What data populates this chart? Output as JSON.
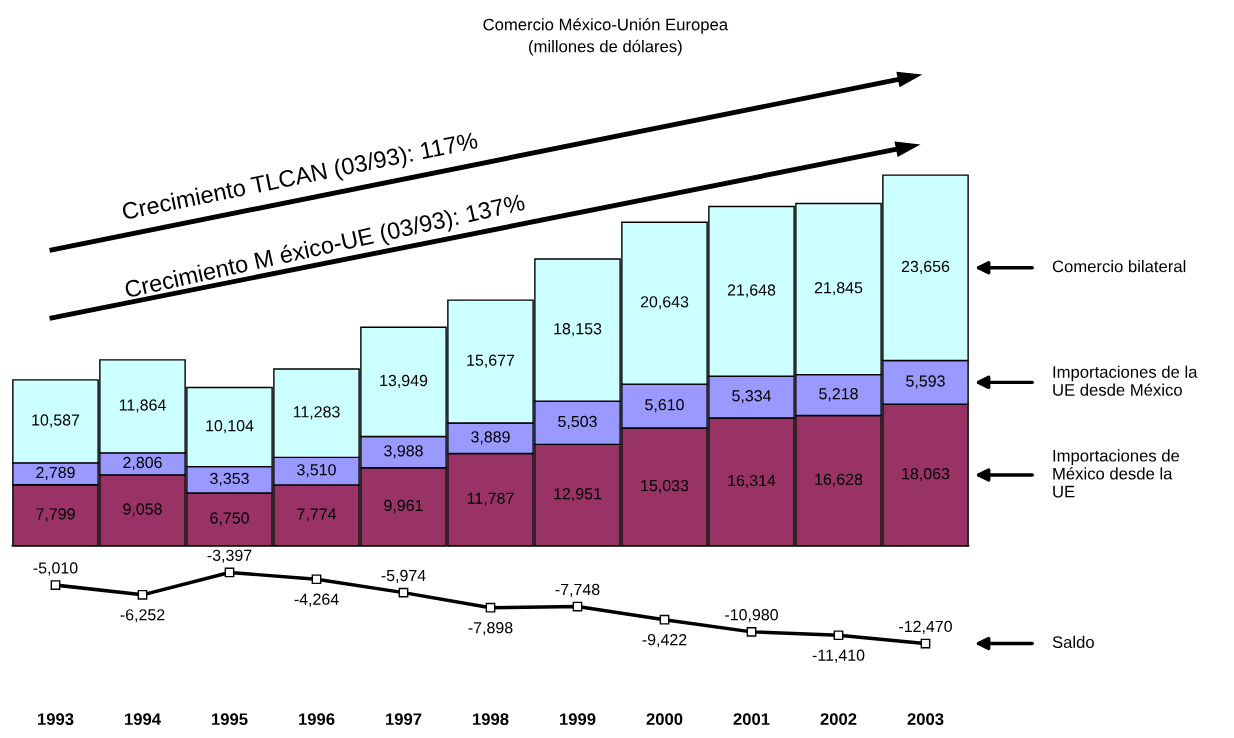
{
  "chart_data": {
    "type": "bar",
    "stacked": true,
    "title": "Comercio México-Unión Europea\n(millones de dólares)",
    "categories": [
      "1993",
      "1994",
      "1995",
      "1996",
      "1997",
      "1998",
      "1999",
      "2000",
      "2001",
      "2002",
      "2003"
    ],
    "series": [
      {
        "name": "Importaciones de\nMéxico desde la\nUE",
        "color": "#993366",
        "values": [
          7799,
          9058,
          6750,
          7774,
          9961,
          11787,
          12951,
          15033,
          16314,
          16628,
          18063
        ],
        "value_labels": [
          "7,799",
          "9,058",
          "6,750",
          "7,774",
          "9,961",
          "11,787",
          "12,951",
          "15,033",
          "16,314",
          "16,628",
          "18,063"
        ]
      },
      {
        "name": "Importaciones de la\nUE desde México",
        "color": "#9999ff",
        "values": [
          2789,
          2806,
          3353,
          3510,
          3988,
          3889,
          5503,
          5610,
          5334,
          5218,
          5593
        ],
        "value_labels": [
          "2,789",
          "2,806",
          "3,353",
          "3,510",
          "3,988",
          "3,889",
          "5,503",
          "5,610",
          "5,334",
          "5,218",
          "5,593"
        ]
      },
      {
        "name": "Comercio bilateral",
        "color": "#ccffff",
        "values": [
          10587,
          11864,
          10104,
          11283,
          13949,
          15677,
          18153,
          20643,
          21648,
          21845,
          23656
        ],
        "value_labels": [
          "10,587",
          "11,864",
          "10,104",
          "11,283",
          "13,949",
          "15,677",
          "18,153",
          "20,643",
          "21,648",
          "21,845",
          "23,656"
        ]
      },
      {
        "name": "Saldo",
        "type": "line",
        "color": "#000000",
        "marker": "square",
        "line_style": "solid",
        "values": [
          -5010,
          -6252,
          -3397,
          -4264,
          -5974,
          -7898,
          -7748,
          -9422,
          -10980,
          -11410,
          -12470
        ],
        "value_labels": [
          "-5,010",
          "-6,252",
          "-3,397",
          "-4,264",
          "-5,974",
          "-7,898",
          "-7,748",
          "-9,422",
          "-10,980",
          "-11,410",
          "-12,470"
        ]
      }
    ],
    "tick_labels": "x",
    "grid": false,
    "legend": "right",
    "annotations": [
      "Crecimiento TLCAN (03/93): 117%",
      "Crecimiento M éxico-UE (03/93): 137%"
    ]
  }
}
